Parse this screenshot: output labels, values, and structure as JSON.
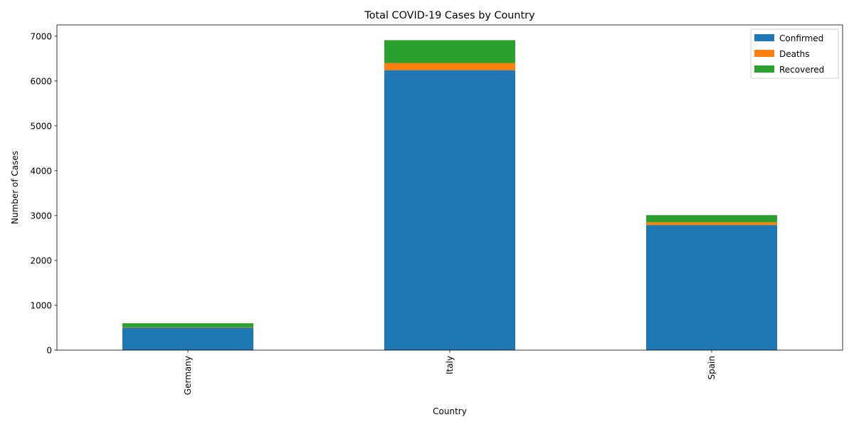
{
  "chart_data": {
    "type": "bar",
    "stacked": true,
    "title": "Total COVID-19 Cases by Country",
    "xlabel": "Country",
    "ylabel": "Number of Cases",
    "categories": [
      "Germany",
      "Italy",
      "Spain"
    ],
    "series": [
      {
        "name": "Confirmed",
        "color": "#1f77b4",
        "values": [
          500,
          6240,
          2790
        ]
      },
      {
        "name": "Deaths",
        "color": "#ff7f0e",
        "values": [
          10,
          160,
          60
        ]
      },
      {
        "name": "Recovered",
        "color": "#2ca02c",
        "values": [
          90,
          510,
          160
        ]
      }
    ],
    "ylim": [
      0,
      7250
    ],
    "yticks": [
      0,
      1000,
      2000,
      3000,
      4000,
      5000,
      6000,
      7000
    ],
    "grid": false,
    "legend_position": "top-right"
  }
}
